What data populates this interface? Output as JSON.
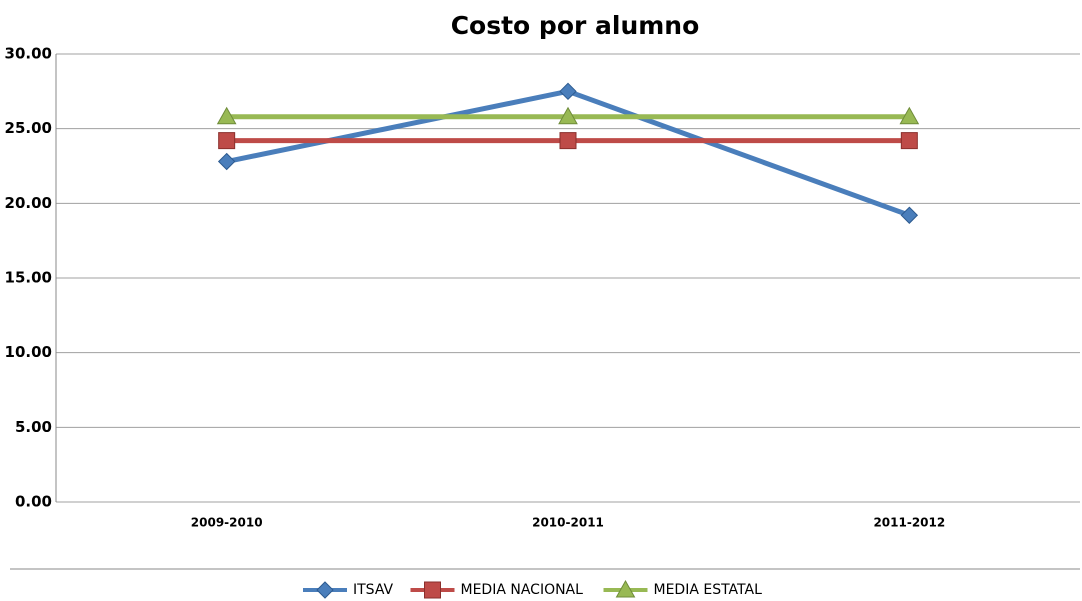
{
  "chart_data": {
    "type": "line",
    "title": "Costo por alumno",
    "categories": [
      "2009-2010",
      "2010-2011",
      "2011-2012"
    ],
    "series": [
      {
        "name": "ITSAV",
        "color": "#4a7ebb",
        "marker": "diamond",
        "values": [
          22.8,
          27.5,
          19.2
        ]
      },
      {
        "name": "MEDIA NACIONAL",
        "color": "#be4b48",
        "marker": "square",
        "values": [
          24.2,
          24.2,
          24.2
        ]
      },
      {
        "name": "MEDIA ESTATAL",
        "color": "#98b954",
        "marker": "triangle",
        "values": [
          25.8,
          25.8,
          25.8
        ]
      }
    ],
    "ylim": [
      0,
      30
    ],
    "yticks": [
      {
        "value": 0,
        "label": "0.00"
      },
      {
        "value": 5,
        "label": "5.00"
      },
      {
        "value": 10,
        "label": "10.00"
      },
      {
        "value": 15,
        "label": "15.00"
      },
      {
        "value": 20,
        "label": "20.00"
      },
      {
        "value": 25,
        "label": "25.00"
      },
      {
        "value": 30,
        "label": "30.00"
      }
    ],
    "grid": true,
    "legend": "bottom"
  }
}
